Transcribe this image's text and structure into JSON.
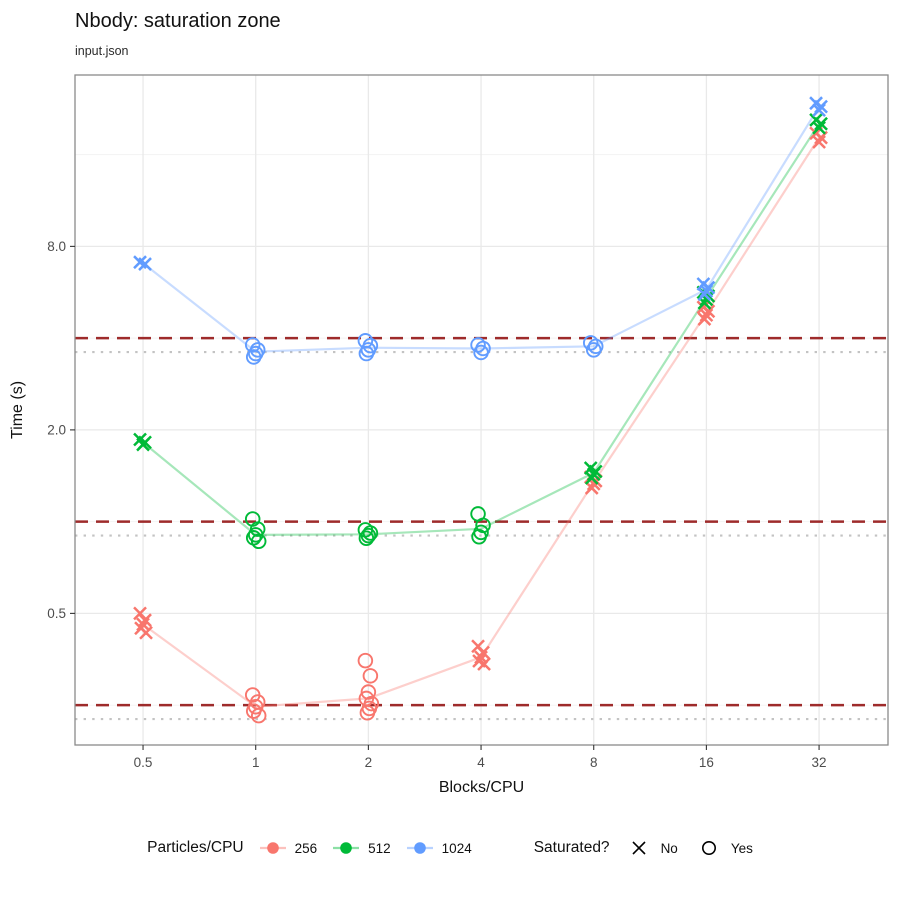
{
  "title": "Nbody: saturation zone",
  "subtitle": "input.json",
  "chart_data": {
    "type": "scatter",
    "title": "Nbody: saturation zone",
    "subtitle": "input.json",
    "xlabel": "Blocks/CPU",
    "ylabel": "Time (s)",
    "x_scale": "log2",
    "y_scale": "log10",
    "xlim": [
      0.329,
      48.9
    ],
    "ylim": [
      0.185,
      29.2
    ],
    "x_ticks": [
      0.5,
      1,
      2,
      4,
      8,
      16,
      32
    ],
    "x_tick_labels": [
      "0.5",
      "1",
      "2",
      "4",
      "8",
      "16",
      "32"
    ],
    "y_ticks": [
      0.5,
      2.0,
      8.0
    ],
    "y_tick_labels": [
      "0.5",
      "2.0",
      "8.0"
    ],
    "y_minor_gridlines": [
      0.25,
      1,
      4,
      16
    ],
    "grid": true,
    "legend_position": "bottom",
    "shape_encoding": {
      "no": "x-cross",
      "yes": "open-circle"
    },
    "threshold_lines": {
      "dashed": {
        "color": "#9E2B2B",
        "values": [
          4.0,
          1.0,
          0.25
        ]
      },
      "dotted": {
        "color": "#C3C3C3",
        "values": [
          3.6,
          0.9,
          0.225
        ]
      }
    },
    "series": [
      {
        "name": "256",
        "color": "#F8766D",
        "groups": [
          {
            "x": 0.5,
            "saturated": false,
            "times": [
              0.5,
              0.475,
              0.46,
              0.447,
              0.432
            ]
          },
          {
            "x": 1,
            "saturated": true,
            "times": [
              0.27,
              0.256,
              0.247,
              0.239,
              0.231
            ]
          },
          {
            "x": 2,
            "saturated": true,
            "times": [
              0.35,
              0.312,
              0.276,
              0.263,
              0.253,
              0.244,
              0.236
            ]
          },
          {
            "x": 4,
            "saturated": false,
            "times": [
              0.39,
              0.372,
              0.359,
              0.349,
              0.341
            ]
          },
          {
            "x": 8,
            "saturated": false,
            "times": [
              1.4,
              1.36,
              1.33,
              1.29
            ]
          },
          {
            "x": 16,
            "saturated": false,
            "times": [
              5.05,
              4.9,
              4.76,
              4.62
            ]
          },
          {
            "x": 32,
            "saturated": false,
            "times": [
              18.8,
              18.2,
              17.6
            ]
          }
        ],
        "median_line": [
          [
            0.5,
            0.46
          ],
          [
            1,
            0.247
          ],
          [
            2,
            0.263
          ],
          [
            4,
            0.359
          ],
          [
            8,
            1.345
          ],
          [
            16,
            4.83
          ],
          [
            32,
            18.2
          ]
        ]
      },
      {
        "name": "512",
        "color": "#00BA38",
        "groups": [
          {
            "x": 0.5,
            "saturated": false,
            "times": [
              1.86,
              1.82,
              1.79
            ]
          },
          {
            "x": 1,
            "saturated": true,
            "times": [
              1.02,
              0.945,
              0.905,
              0.885,
              0.862
            ]
          },
          {
            "x": 2,
            "saturated": true,
            "times": [
              0.94,
              0.918,
              0.9,
              0.882
            ]
          },
          {
            "x": 4,
            "saturated": true,
            "times": [
              1.06,
              0.972,
              0.922,
              0.892
            ]
          },
          {
            "x": 8,
            "saturated": false,
            "times": [
              1.5,
              1.46,
              1.43,
              1.39
            ]
          },
          {
            "x": 16,
            "saturated": false,
            "times": [
              5.65,
              5.5,
              5.36,
              5.22
            ]
          },
          {
            "x": 32,
            "saturated": false,
            "times": [
              20.8,
              20.2,
              19.6
            ]
          }
        ],
        "median_line": [
          [
            0.5,
            1.82
          ],
          [
            1,
            0.905
          ],
          [
            2,
            0.909
          ],
          [
            4,
            0.947
          ],
          [
            8,
            1.445
          ],
          [
            16,
            5.43
          ],
          [
            32,
            20.2
          ]
        ]
      },
      {
        "name": "1024",
        "color": "#619CFF",
        "groups": [
          {
            "x": 0.5,
            "saturated": false,
            "times": [
              7.1,
              7.0
            ]
          },
          {
            "x": 1,
            "saturated": true,
            "times": [
              3.8,
              3.66,
              3.56,
              3.47
            ]
          },
          {
            "x": 2,
            "saturated": true,
            "times": [
              3.92,
              3.78,
              3.66,
              3.56
            ]
          },
          {
            "x": 4,
            "saturated": true,
            "times": [
              3.8,
              3.7,
              3.59
            ]
          },
          {
            "x": 8,
            "saturated": true,
            "times": [
              3.86,
              3.76,
              3.66
            ]
          },
          {
            "x": 16,
            "saturated": false,
            "times": [
              6.02,
              5.86,
              5.71,
              5.57
            ]
          },
          {
            "x": 32,
            "saturated": false,
            "times": [
              23.6,
              23.0,
              22.4
            ]
          }
        ],
        "median_line": [
          [
            0.5,
            7.05
          ],
          [
            1,
            3.61
          ],
          [
            2,
            3.72
          ],
          [
            4,
            3.7
          ],
          [
            8,
            3.76
          ],
          [
            16,
            5.78
          ],
          [
            32,
            23.0
          ]
        ]
      }
    ]
  },
  "legend": {
    "color_legend_title": "Particles/CPU",
    "shape_legend_title": "Saturated?",
    "shape_no_label": "No",
    "shape_yes_label": "Yes"
  }
}
